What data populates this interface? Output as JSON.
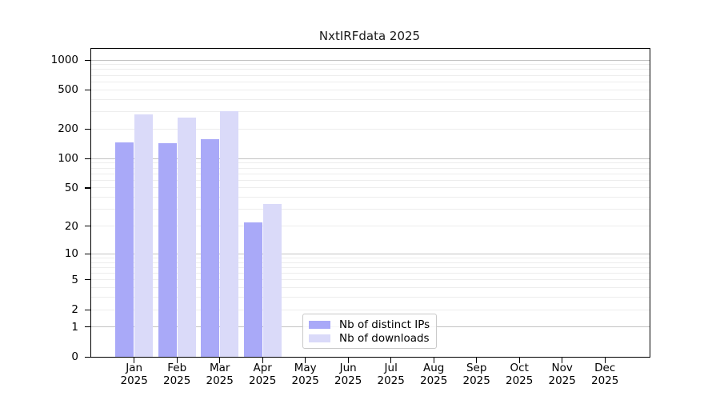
{
  "chart_data": {
    "type": "bar",
    "title": "NxtIRFdata 2025",
    "year_label": "2025",
    "categories": [
      "Jan",
      "Feb",
      "Mar",
      "Apr",
      "May",
      "Jun",
      "Jul",
      "Aug",
      "Sep",
      "Oct",
      "Nov",
      "Dec"
    ],
    "series": [
      {
        "name": "Nb of distinct IPs",
        "color": "#a9a9f8",
        "values": [
          147,
          144,
          158,
          22,
          0,
          0,
          0,
          0,
          0,
          0,
          0,
          0
        ]
      },
      {
        "name": "Nb of downloads",
        "color": "#dadaf9",
        "values": [
          283,
          259,
          302,
          34,
          0,
          0,
          0,
          0,
          0,
          0,
          0,
          0
        ]
      }
    ],
    "yscale": "log1p",
    "ylim": [
      0,
      1000
    ],
    "yticks": [
      0,
      1,
      2,
      5,
      10,
      20,
      50,
      100,
      200,
      500,
      1000
    ],
    "major_gridlines": [
      1,
      10,
      100,
      1000
    ],
    "minor_gridlines": [
      2,
      3,
      4,
      5,
      6,
      7,
      8,
      9,
      20,
      30,
      40,
      50,
      60,
      70,
      80,
      90,
      200,
      300,
      400,
      500,
      600,
      700,
      800,
      900
    ],
    "grid": true,
    "legend_position": "lower center-left inside plot"
  },
  "colors": {
    "major_grid": "#c3c3c3",
    "minor_grid": "#ededed",
    "spine": "#000000",
    "background": "#ffffff"
  }
}
